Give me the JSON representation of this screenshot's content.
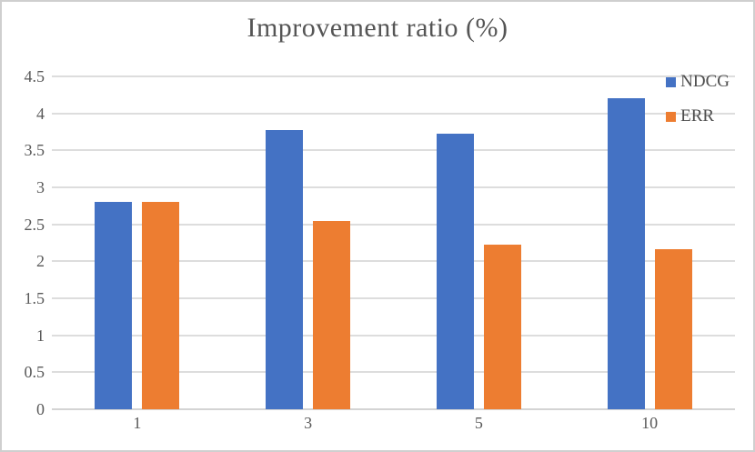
{
  "chart_data": {
    "type": "bar",
    "title": "Improvement ratio (%)",
    "categories": [
      "1",
      "3",
      "5",
      "10"
    ],
    "series": [
      {
        "name": "NDCG",
        "color": "#4472C4",
        "values": [
          2.8,
          3.78,
          3.72,
          4.2
        ]
      },
      {
        "name": "ERR",
        "color": "#ED7D31",
        "values": [
          2.8,
          2.54,
          2.22,
          2.17
        ]
      }
    ],
    "xlabel": "",
    "ylabel": "",
    "ylim": [
      0,
      4.5
    ],
    "ytick_step": 0.5,
    "grid": true,
    "legend_position": "top-right",
    "colors": {
      "title_text": "#555555",
      "axis_text": "#595959",
      "gridline": "#dddddd",
      "background": "#ffffff",
      "border": "#cfcfcf"
    }
  }
}
